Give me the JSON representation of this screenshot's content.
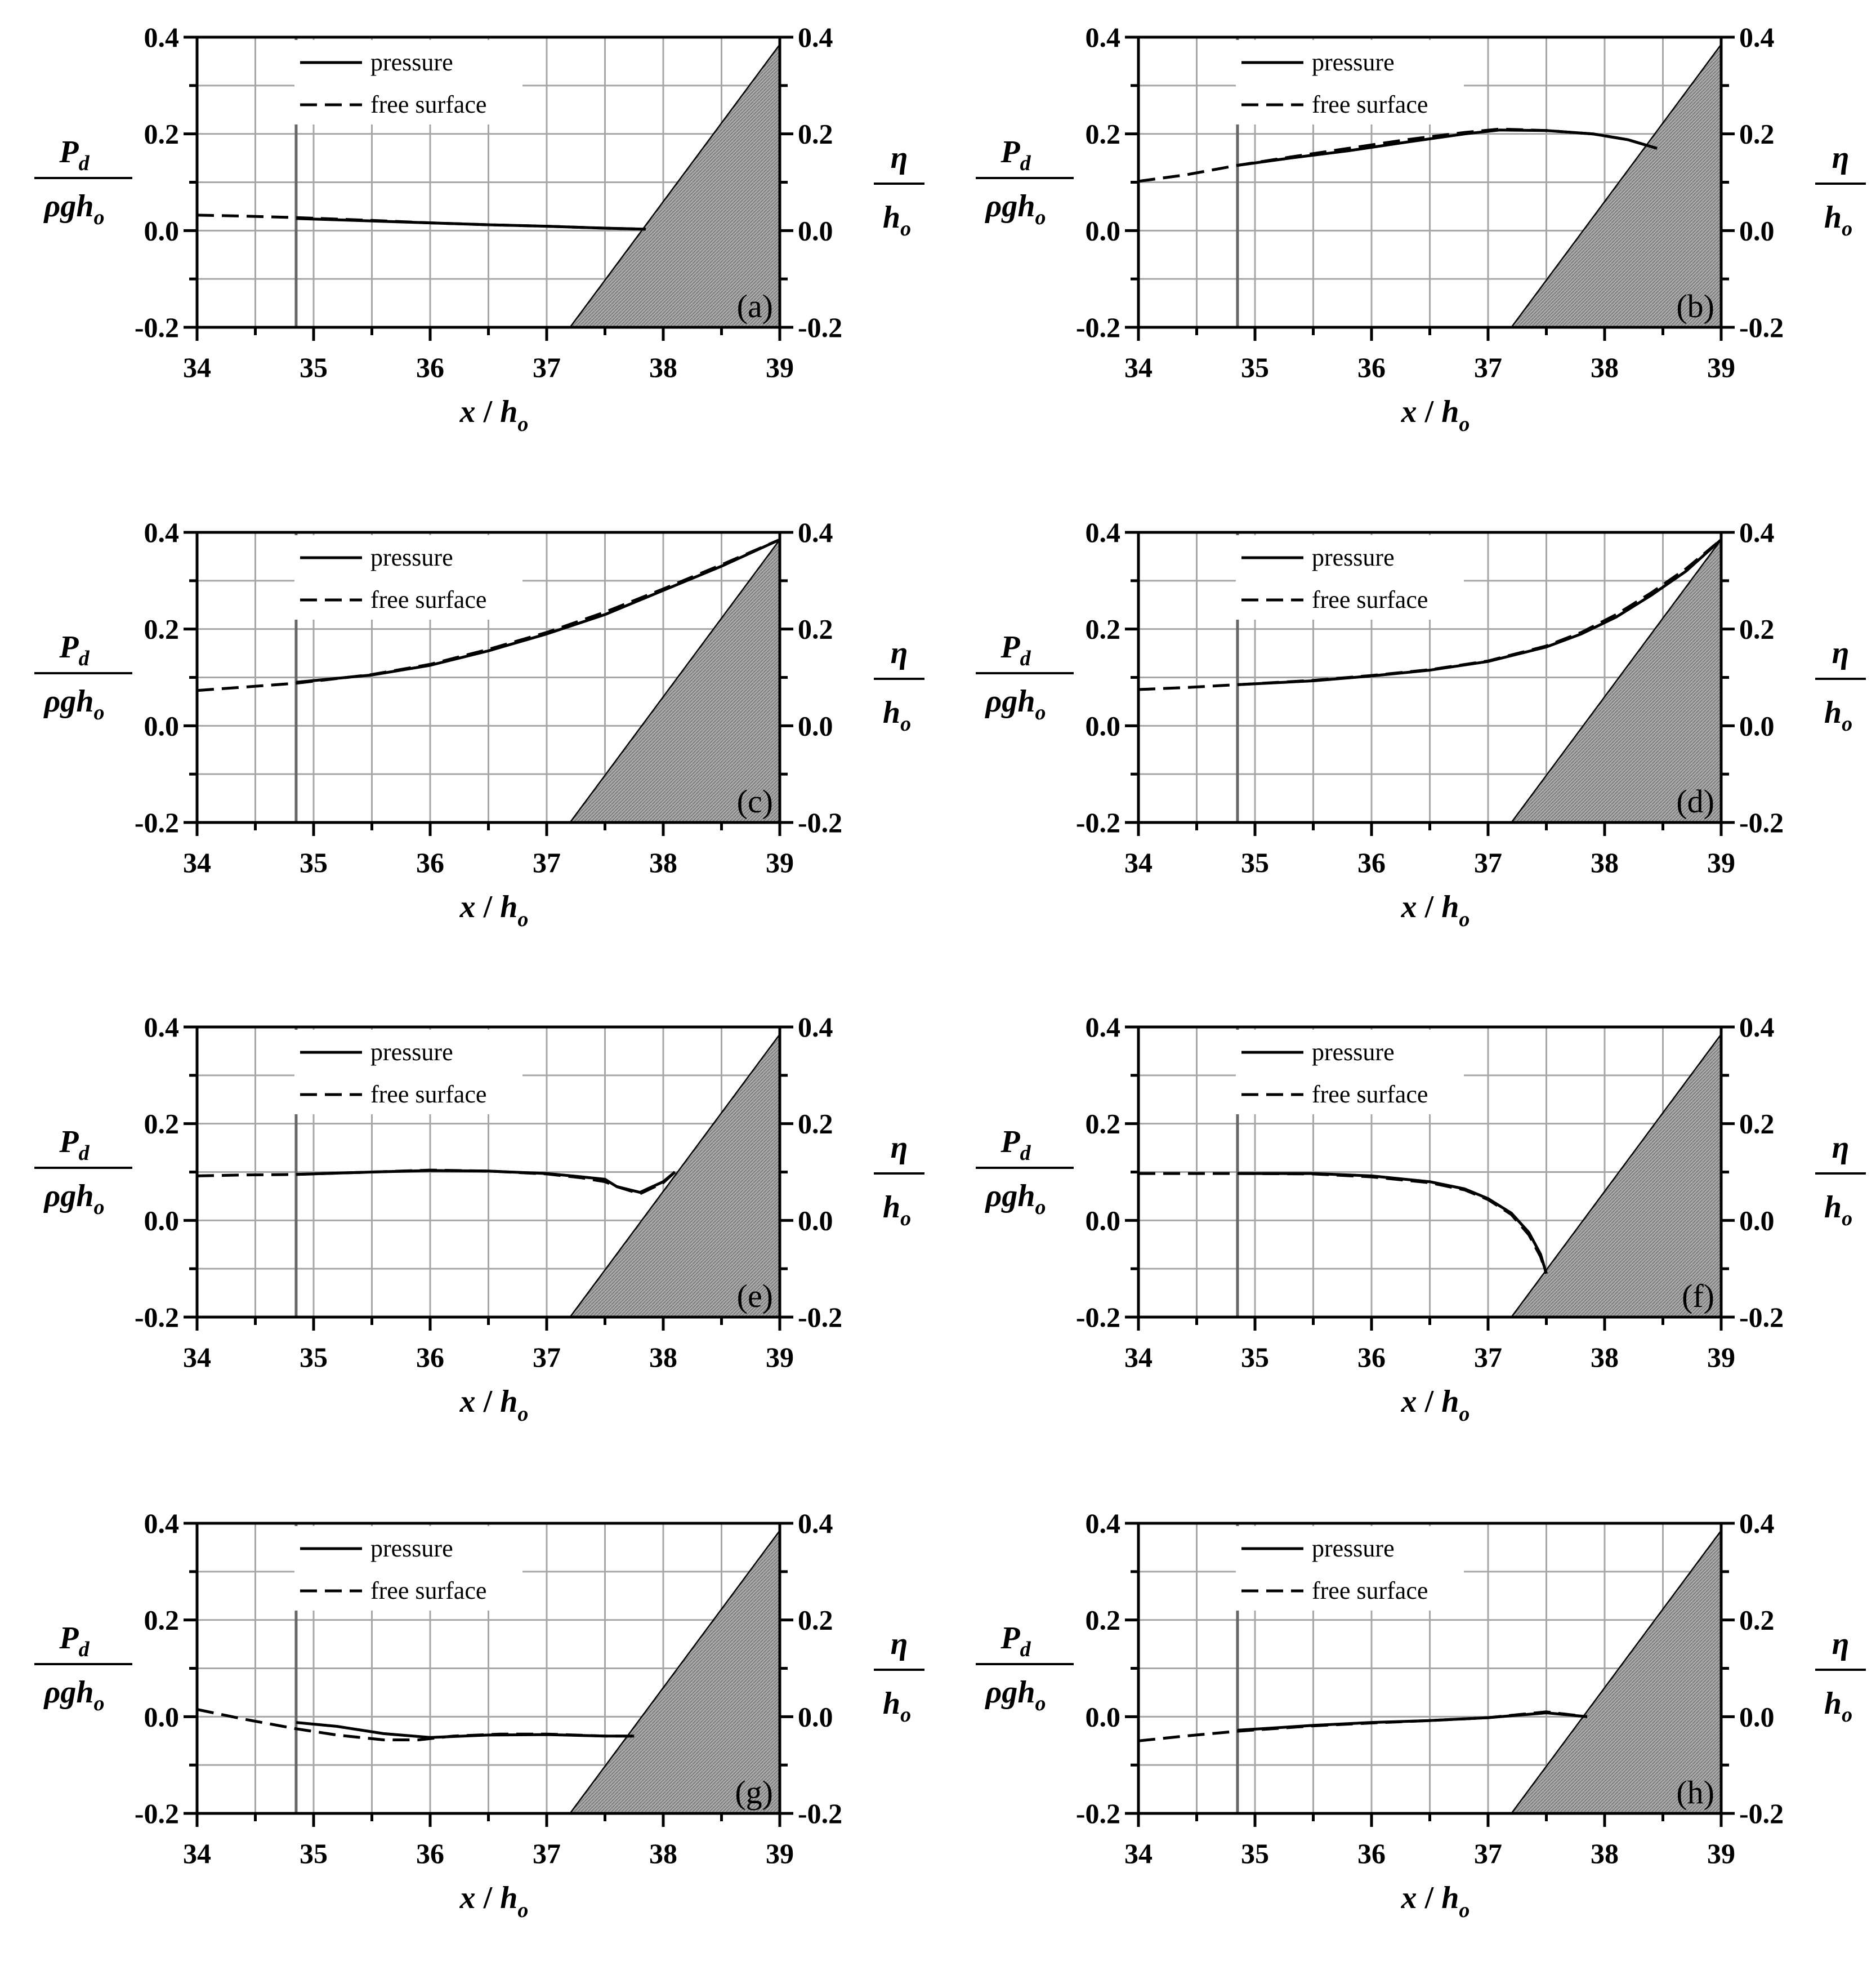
{
  "chart_data": [
    {
      "type": "line",
      "panel_label": "(a)",
      "xlabel": {
        "var": "x",
        "slash": "/",
        "h": "h",
        "sub": "o"
      },
      "ylabel_left": {
        "num": "P",
        "num_sub": "d",
        "den": "ρgh",
        "den_sub": "o"
      },
      "ylabel_right": {
        "num": "η",
        "den": "h",
        "den_sub": "o"
      },
      "xlim": [
        34,
        39
      ],
      "ylim": [
        -0.2,
        0.4
      ],
      "xticks": [
        "34",
        "35",
        "36",
        "37",
        "38",
        "39"
      ],
      "yticks": [
        "-0.2",
        "0.0",
        "0.2",
        "0.4"
      ],
      "grid": true,
      "legend": {
        "position": "top-left",
        "entries": [
          "pressure",
          "free surface"
        ]
      },
      "gate_x": 34.85,
      "slope": [
        [
          37.2,
          -0.2
        ],
        [
          39,
          0.385
        ]
      ],
      "series": [
        {
          "name": "pressure",
          "style": "solid",
          "x": [
            34.85,
            35.5,
            36.0,
            36.5,
            37.0,
            37.5,
            37.85
          ],
          "y": [
            0.025,
            0.02,
            0.016,
            0.012,
            0.009,
            0.005,
            0.003
          ]
        },
        {
          "name": "free surface",
          "style": "dashed",
          "x": [
            34.0,
            34.4,
            34.85,
            35.5,
            36.0,
            36.5,
            37.0,
            37.5,
            37.85
          ],
          "y": [
            0.032,
            0.03,
            0.027,
            0.021,
            0.016,
            0.012,
            0.009,
            0.005,
            0.003
          ]
        }
      ]
    },
    {
      "type": "line",
      "panel_label": "(b)",
      "xlabel": {
        "var": "x",
        "slash": "/",
        "h": "h",
        "sub": "o"
      },
      "ylabel_left": {
        "num": "P",
        "num_sub": "d",
        "den": "ρgh",
        "den_sub": "o"
      },
      "ylabel_right": {
        "num": "η",
        "den": "h",
        "den_sub": "o"
      },
      "xlim": [
        34,
        39
      ],
      "ylim": [
        -0.2,
        0.4
      ],
      "xticks": [
        "34",
        "35",
        "36",
        "37",
        "38",
        "39"
      ],
      "yticks": [
        "-0.2",
        "0.0",
        "0.2",
        "0.4"
      ],
      "grid": true,
      "legend": {
        "position": "top-left",
        "entries": [
          "pressure",
          "free surface"
        ]
      },
      "gate_x": 34.85,
      "slope": [
        [
          37.2,
          -0.2
        ],
        [
          39,
          0.385
        ]
      ],
      "series": [
        {
          "name": "pressure",
          "style": "solid",
          "x": [
            34.85,
            35.3,
            35.8,
            36.3,
            36.8,
            37.1,
            37.5,
            37.9,
            38.2,
            38.45
          ],
          "y": [
            0.135,
            0.15,
            0.165,
            0.183,
            0.2,
            0.208,
            0.207,
            0.2,
            0.188,
            0.17
          ]
        },
        {
          "name": "free surface",
          "style": "dashed",
          "x": [
            34.0,
            34.4,
            34.85,
            35.3,
            35.8,
            36.3,
            36.8,
            37.1,
            37.5,
            37.9,
            38.2,
            38.45
          ],
          "y": [
            0.102,
            0.115,
            0.135,
            0.152,
            0.17,
            0.188,
            0.203,
            0.21,
            0.207,
            0.2,
            0.188,
            0.17
          ]
        }
      ]
    },
    {
      "type": "line",
      "panel_label": "(c)",
      "xlabel": {
        "var": "x",
        "slash": "/",
        "h": "h",
        "sub": "o"
      },
      "ylabel_left": {
        "num": "P",
        "num_sub": "d",
        "den": "ρgh",
        "den_sub": "o"
      },
      "ylabel_right": {
        "num": "η",
        "den": "h",
        "den_sub": "o"
      },
      "xlim": [
        34,
        39
      ],
      "ylim": [
        -0.2,
        0.4
      ],
      "xticks": [
        "34",
        "35",
        "36",
        "37",
        "38",
        "39"
      ],
      "yticks": [
        "-0.2",
        "0.0",
        "0.2",
        "0.4"
      ],
      "grid": true,
      "legend": {
        "position": "top-left",
        "entries": [
          "pressure",
          "free surface"
        ]
      },
      "gate_x": 34.85,
      "slope": [
        [
          37.2,
          -0.2
        ],
        [
          39,
          0.385
        ]
      ],
      "series": [
        {
          "name": "pressure",
          "style": "solid",
          "x": [
            34.85,
            35.5,
            36.0,
            36.5,
            37.0,
            37.5,
            38.0,
            38.5,
            39.0
          ],
          "y": [
            0.09,
            0.105,
            0.125,
            0.155,
            0.19,
            0.23,
            0.28,
            0.33,
            0.385
          ]
        },
        {
          "name": "free surface",
          "style": "dashed",
          "x": [
            34.0,
            34.4,
            34.85,
            35.5,
            36.0,
            36.5,
            37.0,
            37.5,
            38.0,
            38.5,
            39.0
          ],
          "y": [
            0.073,
            0.08,
            0.088,
            0.106,
            0.127,
            0.158,
            0.193,
            0.235,
            0.283,
            0.333,
            0.385
          ]
        }
      ]
    },
    {
      "type": "line",
      "panel_label": "(d)",
      "xlabel": {
        "var": "x",
        "slash": "/",
        "h": "h",
        "sub": "o"
      },
      "ylabel_left": {
        "num": "P",
        "num_sub": "d",
        "den": "ρgh",
        "den_sub": "o"
      },
      "ylabel_right": {
        "num": "η",
        "den": "h",
        "den_sub": "o"
      },
      "xlim": [
        34,
        39
      ],
      "ylim": [
        -0.2,
        0.4
      ],
      "xticks": [
        "34",
        "35",
        "36",
        "37",
        "38",
        "39"
      ],
      "yticks": [
        "-0.2",
        "0.0",
        "0.2",
        "0.4"
      ],
      "grid": true,
      "legend": {
        "position": "top-left",
        "entries": [
          "pressure",
          "free surface"
        ]
      },
      "gate_x": 34.85,
      "slope": [
        [
          37.2,
          -0.2
        ],
        [
          39,
          0.385
        ]
      ],
      "series": [
        {
          "name": "pressure",
          "style": "solid",
          "x": [
            34.85,
            35.5,
            36.0,
            36.5,
            37.0,
            37.5,
            37.8,
            38.1,
            38.4,
            38.7,
            39.0
          ],
          "y": [
            0.085,
            0.093,
            0.103,
            0.115,
            0.133,
            0.163,
            0.19,
            0.225,
            0.27,
            0.32,
            0.385
          ]
        },
        {
          "name": "free surface",
          "style": "dashed",
          "x": [
            34.0,
            34.4,
            34.85,
            35.5,
            36.0,
            36.5,
            37.0,
            37.5,
            37.8,
            38.1,
            38.4,
            38.7,
            39.0
          ],
          "y": [
            0.075,
            0.079,
            0.085,
            0.094,
            0.104,
            0.116,
            0.134,
            0.165,
            0.193,
            0.23,
            0.275,
            0.325,
            0.385
          ]
        }
      ]
    },
    {
      "type": "line",
      "panel_label": "(e)",
      "xlabel": {
        "var": "x",
        "slash": "/",
        "h": "h",
        "sub": "o"
      },
      "ylabel_left": {
        "num": "P",
        "num_sub": "d",
        "den": "ρgh",
        "den_sub": "o"
      },
      "ylabel_right": {
        "num": "η",
        "den": "h",
        "den_sub": "o"
      },
      "xlim": [
        34,
        39
      ],
      "ylim": [
        -0.2,
        0.4
      ],
      "xticks": [
        "34",
        "35",
        "36",
        "37",
        "38",
        "39"
      ],
      "yticks": [
        "-0.2",
        "0.0",
        "0.2",
        "0.4"
      ],
      "grid": true,
      "legend": {
        "position": "top-left",
        "entries": [
          "pressure",
          "free surface"
        ]
      },
      "gate_x": 34.85,
      "slope": [
        [
          37.2,
          -0.2
        ],
        [
          39,
          0.385
        ]
      ],
      "series": [
        {
          "name": "pressure",
          "style": "solid",
          "x": [
            34.85,
            35.5,
            36.0,
            36.5,
            37.0,
            37.3,
            37.5,
            37.6,
            37.8,
            38.0,
            38.1
          ],
          "y": [
            0.095,
            0.1,
            0.103,
            0.102,
            0.097,
            0.09,
            0.085,
            0.07,
            0.058,
            0.08,
            0.1
          ]
        },
        {
          "name": "free surface",
          "style": "dashed",
          "x": [
            34.0,
            34.4,
            34.85,
            35.5,
            36.0,
            36.5,
            37.0,
            37.3,
            37.5,
            37.6,
            37.8,
            38.0,
            38.1
          ],
          "y": [
            0.092,
            0.094,
            0.095,
            0.1,
            0.104,
            0.102,
            0.096,
            0.088,
            0.08,
            0.07,
            0.055,
            0.078,
            0.1
          ]
        }
      ]
    },
    {
      "type": "line",
      "panel_label": "(f)",
      "xlabel": {
        "var": "x",
        "slash": "/",
        "h": "h",
        "sub": "o"
      },
      "ylabel_left": {
        "num": "P",
        "num_sub": "d",
        "den": "ρgh",
        "den_sub": "o"
      },
      "ylabel_right": {
        "num": "η",
        "den": "h",
        "den_sub": "o"
      },
      "xlim": [
        34,
        39
      ],
      "ylim": [
        -0.2,
        0.4
      ],
      "xticks": [
        "34",
        "35",
        "36",
        "37",
        "38",
        "39"
      ],
      "yticks": [
        "-0.2",
        "0.0",
        "0.2",
        "0.4"
      ],
      "grid": true,
      "legend": {
        "position": "top-left",
        "entries": [
          "pressure",
          "free surface"
        ]
      },
      "gate_x": 34.85,
      "slope": [
        [
          37.2,
          -0.2
        ],
        [
          39,
          0.385
        ]
      ],
      "series": [
        {
          "name": "pressure",
          "style": "solid",
          "x": [
            34.85,
            35.5,
            36.0,
            36.5,
            36.8,
            37.0,
            37.2,
            37.35,
            37.45,
            37.5
          ],
          "y": [
            0.097,
            0.097,
            0.092,
            0.08,
            0.065,
            0.045,
            0.015,
            -0.025,
            -0.07,
            -0.11
          ]
        },
        {
          "name": "free surface",
          "style": "dashed",
          "x": [
            34.0,
            34.4,
            34.85,
            35.5,
            36.0,
            36.5,
            36.8,
            37.0,
            37.2,
            37.35,
            37.45,
            37.5
          ],
          "y": [
            0.097,
            0.097,
            0.097,
            0.096,
            0.09,
            0.078,
            0.063,
            0.043,
            0.012,
            -0.03,
            -0.075,
            -0.11
          ]
        }
      ]
    },
    {
      "type": "line",
      "panel_label": "(g)",
      "xlabel": {
        "var": "x",
        "slash": "/",
        "h": "h",
        "sub": "o"
      },
      "ylabel_left": {
        "num": "P",
        "num_sub": "d",
        "den": "ρgh",
        "den_sub": "o"
      },
      "ylabel_right": {
        "num": "η",
        "den": "h",
        "den_sub": "o"
      },
      "xlim": [
        34,
        39
      ],
      "ylim": [
        -0.2,
        0.4
      ],
      "xticks": [
        "34",
        "35",
        "36",
        "37",
        "38",
        "39"
      ],
      "yticks": [
        "-0.2",
        "0.0",
        "0.2",
        "0.4"
      ],
      "grid": true,
      "legend": {
        "position": "top-left",
        "entries": [
          "pressure",
          "free surface"
        ]
      },
      "gate_x": 34.85,
      "slope": [
        [
          37.2,
          -0.2
        ],
        [
          39,
          0.385
        ]
      ],
      "series": [
        {
          "name": "pressure",
          "style": "solid",
          "x": [
            34.85,
            35.2,
            35.6,
            36.0,
            36.5,
            37.0,
            37.5,
            37.75
          ],
          "y": [
            -0.012,
            -0.02,
            -0.035,
            -0.043,
            -0.038,
            -0.037,
            -0.04,
            -0.04
          ]
        },
        {
          "name": "free surface",
          "style": "dashed",
          "x": [
            34.0,
            34.4,
            34.85,
            35.2,
            35.6,
            35.9,
            36.2,
            36.6,
            37.0,
            37.5,
            37.75
          ],
          "y": [
            0.015,
            -0.005,
            -0.025,
            -0.038,
            -0.048,
            -0.048,
            -0.04,
            -0.036,
            -0.036,
            -0.04,
            -0.04
          ]
        }
      ]
    },
    {
      "type": "line",
      "panel_label": "(h)",
      "xlabel": {
        "var": "x",
        "slash": "/",
        "h": "h",
        "sub": "o"
      },
      "ylabel_left": {
        "num": "P",
        "num_sub": "d",
        "den": "ρgh",
        "den_sub": "o"
      },
      "ylabel_right": {
        "num": "η",
        "den": "h",
        "den_sub": "o"
      },
      "xlim": [
        34,
        39
      ],
      "ylim": [
        -0.2,
        0.4
      ],
      "xticks": [
        "34",
        "35",
        "36",
        "37",
        "38",
        "39"
      ],
      "yticks": [
        "-0.2",
        "0.0",
        "0.2",
        "0.4"
      ],
      "grid": true,
      "legend": {
        "position": "top-left",
        "entries": [
          "pressure",
          "free surface"
        ]
      },
      "gate_x": 34.85,
      "slope": [
        [
          37.2,
          -0.2
        ],
        [
          39,
          0.385
        ]
      ],
      "series": [
        {
          "name": "pressure",
          "style": "solid",
          "x": [
            34.85,
            35.5,
            36.0,
            36.5,
            37.0,
            37.5,
            37.85
          ],
          "y": [
            -0.028,
            -0.018,
            -0.012,
            -0.008,
            -0.002,
            0.008,
            0.0
          ]
        },
        {
          "name": "free surface",
          "style": "dashed",
          "x": [
            34.0,
            34.4,
            34.85,
            35.5,
            36.0,
            36.5,
            37.0,
            37.5,
            37.85
          ],
          "y": [
            -0.05,
            -0.04,
            -0.03,
            -0.019,
            -0.013,
            -0.008,
            -0.002,
            0.01,
            0.0
          ]
        }
      ]
    }
  ]
}
